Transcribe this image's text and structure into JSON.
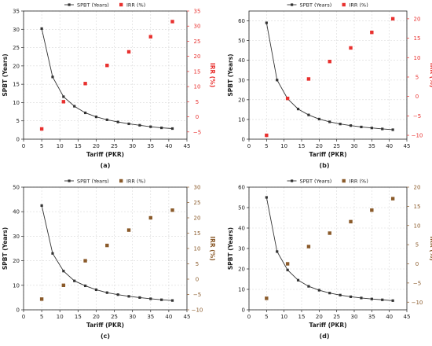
{
  "chart_data": [
    {
      "type": "line+scatter",
      "panel_label": "(a)",
      "xlabel": "Tariff (PKR)",
      "ylabel": "SPBT (Years)",
      "y2label": "IRR (%)",
      "xlim": [
        0,
        45
      ],
      "ylim": [
        0,
        35
      ],
      "y2lim": [
        -7.4,
        35
      ],
      "xticks": [
        0,
        5,
        10,
        15,
        20,
        25,
        30,
        35,
        40,
        45
      ],
      "yticks": [
        0,
        5,
        10,
        15,
        20,
        25,
        30,
        35
      ],
      "y2ticks": [
        -5,
        0,
        5,
        10,
        15,
        20,
        25,
        30,
        35
      ],
      "grid": true,
      "legend_position": "top-center",
      "colors": {
        "line": "#333333",
        "scatter": "#e8312f",
        "axis": "#222222",
        "y2axis": "#e8312f"
      },
      "series": [
        {
          "name": "SPBT (Years)",
          "axis": "left",
          "kind": "line",
          "x": [
            5,
            8,
            11,
            14,
            17,
            20,
            23,
            26,
            29,
            32,
            35,
            38,
            41
          ],
          "y": [
            30.2,
            17.0,
            11.6,
            9.0,
            7.2,
            6.1,
            5.3,
            4.7,
            4.2,
            3.8,
            3.4,
            3.1,
            2.9
          ]
        },
        {
          "name": "IRR (%)",
          "axis": "right",
          "kind": "scatter",
          "x": [
            5,
            11,
            17,
            23,
            29,
            35,
            41
          ],
          "y": [
            -4,
            5,
            11,
            17,
            21.5,
            26.5,
            31.5
          ]
        }
      ]
    },
    {
      "type": "line+scatter",
      "panel_label": "(b)",
      "xlabel": "Tariff (PKR)",
      "ylabel": "SPBT (Years)",
      "y2label": "IRR (%)",
      "xlim": [
        0,
        45
      ],
      "ylim": [
        0,
        65
      ],
      "y2lim": [
        -11,
        22
      ],
      "xticks": [
        0,
        5,
        10,
        15,
        20,
        25,
        30,
        35,
        40,
        45
      ],
      "yticks": [
        0,
        10,
        20,
        30,
        40,
        50,
        60
      ],
      "y2ticks": [
        -10,
        -5,
        0,
        5,
        10,
        15,
        20
      ],
      "grid": true,
      "legend_position": "top-center",
      "colors": {
        "line": "#333333",
        "scatter": "#e8312f",
        "axis": "#222222",
        "y2axis": "#e8312f"
      },
      "series": [
        {
          "name": "SPBT (Years)",
          "axis": "left",
          "kind": "line",
          "x": [
            5,
            8,
            11,
            14,
            17,
            20,
            23,
            26,
            29,
            32,
            35,
            38,
            41
          ],
          "y": [
            59,
            30,
            20.5,
            15.3,
            12.3,
            10.2,
            8.8,
            7.7,
            6.9,
            6.2,
            5.7,
            5.2,
            4.8
          ]
        },
        {
          "name": "IRR (%)",
          "axis": "right",
          "kind": "scatter",
          "x": [
            5,
            11,
            17,
            23,
            29,
            35,
            41
          ],
          "y": [
            -10,
            -0.5,
            4.5,
            9,
            12.5,
            16.5,
            20
          ]
        }
      ]
    },
    {
      "type": "line+scatter",
      "panel_label": "(c)",
      "xlabel": "Tariff (PKR)",
      "ylabel": "SPBT (Years)",
      "y2label": "IRR (%)",
      "xlim": [
        0,
        45
      ],
      "ylim": [
        0,
        50
      ],
      "y2lim": [
        -10,
        30
      ],
      "xticks": [
        0,
        5,
        10,
        15,
        20,
        25,
        30,
        35,
        40,
        45
      ],
      "yticks": [
        0,
        10,
        20,
        30,
        40,
        50
      ],
      "y2ticks": [
        -10,
        -5,
        0,
        5,
        10,
        15,
        20,
        25,
        30
      ],
      "grid": true,
      "legend_position": "top-center",
      "colors": {
        "line": "#333333",
        "scatter": "#8a5a2a",
        "axis": "#222222",
        "y2axis": "#8a5a2a"
      },
      "series": [
        {
          "name": "SPBT (Years)",
          "axis": "left",
          "kind": "line",
          "x": [
            5,
            8,
            11,
            14,
            17,
            20,
            23,
            26,
            29,
            32,
            35,
            38,
            41
          ],
          "y": [
            42.5,
            23,
            15.8,
            11.8,
            9.8,
            8.2,
            7.0,
            6.2,
            5.5,
            5.0,
            4.5,
            4.1,
            3.8
          ]
        },
        {
          "name": "IRR (%)",
          "axis": "right",
          "kind": "scatter",
          "x": [
            5,
            11,
            17,
            23,
            29,
            35,
            41
          ],
          "y": [
            -6.5,
            -2,
            6,
            11,
            16,
            20,
            22.5
          ]
        }
      ]
    },
    {
      "type": "line+scatter",
      "panel_label": "(d)",
      "xlabel": "Tariff (PKR)",
      "ylabel": "SPBT (Years)",
      "y2label": "IRR (%)",
      "xlim": [
        0,
        45
      ],
      "ylim": [
        0,
        60
      ],
      "y2lim": [
        -12,
        20
      ],
      "xticks": [
        0,
        5,
        10,
        15,
        20,
        25,
        30,
        35,
        40,
        45
      ],
      "yticks": [
        0,
        10,
        20,
        30,
        40,
        50,
        60
      ],
      "y2ticks": [
        -10,
        -5,
        0,
        5,
        10,
        15,
        20
      ],
      "grid": true,
      "legend_position": "top-center",
      "colors": {
        "line": "#333333",
        "scatter": "#8a5a2a",
        "axis": "#222222",
        "y2axis": "#8a5a2a"
      },
      "series": [
        {
          "name": "SPBT (Years)",
          "axis": "left",
          "kind": "line",
          "x": [
            5,
            8,
            11,
            14,
            17,
            20,
            23,
            26,
            29,
            32,
            35,
            38,
            41
          ],
          "y": [
            55,
            28.5,
            19.5,
            14.5,
            11.5,
            9.6,
            8.2,
            7.2,
            6.4,
            5.8,
            5.3,
            4.9,
            4.5
          ]
        },
        {
          "name": "IRR (%)",
          "axis": "right",
          "kind": "scatter",
          "x": [
            5,
            11,
            17,
            23,
            29,
            35,
            41
          ],
          "y": [
            -9,
            0,
            4.5,
            8,
            11,
            14,
            17
          ]
        }
      ]
    }
  ]
}
